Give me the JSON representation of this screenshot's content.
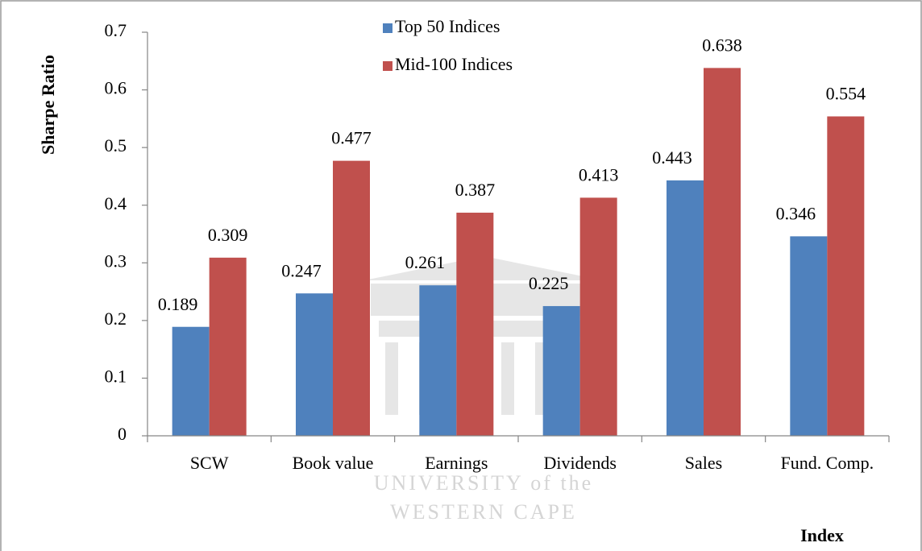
{
  "chart_data": {
    "type": "bar",
    "y_label": "Sharpe Ratio",
    "x_label": "Index",
    "categories": [
      "SCW",
      "Book value",
      "Earnings",
      "Dividends",
      "Sales",
      "Fund. Comp."
    ],
    "series": [
      {
        "name": "Top 50 Indices",
        "color": "#4f81bd",
        "values": [
          0.189,
          0.247,
          0.261,
          0.225,
          0.443,
          0.346
        ]
      },
      {
        "name": "Mid-100 Indices",
        "color": "#c0504d",
        "values": [
          0.309,
          0.477,
          0.387,
          0.413,
          0.638,
          0.554
        ]
      }
    ],
    "ylim": [
      0,
      0.7
    ],
    "yticks": [
      0,
      0.1,
      0.2,
      0.3,
      0.4,
      0.5,
      0.6,
      0.7
    ],
    "legend": "top",
    "watermark": [
      "UNIVERSITY of the",
      "WESTERN CAPE"
    ]
  }
}
